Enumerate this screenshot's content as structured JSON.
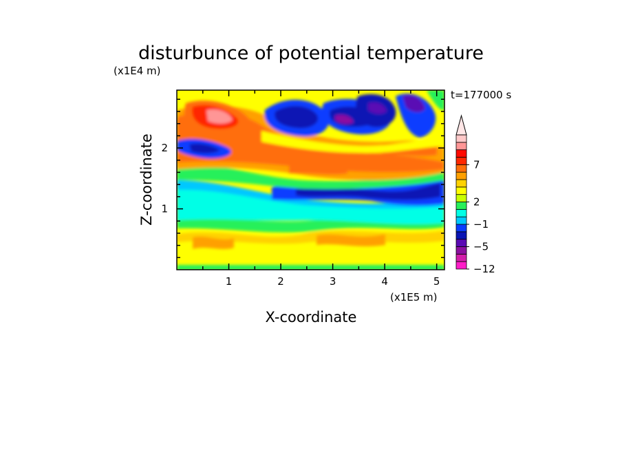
{
  "chart_data": {
    "type": "heatmap",
    "title": "disturbunce of potential temperature",
    "xlabel": "X-coordinate",
    "ylabel": "Z-coordinate",
    "x_unit": "(x1E5 m)",
    "y_unit": "(x1E4 m)",
    "time_label": "t=177000 s",
    "xlim": [
      0,
      5.15
    ],
    "ylim": [
      0,
      2.95
    ],
    "x_ticks": [
      1,
      2,
      3,
      4,
      5
    ],
    "y_ticks": [
      1,
      2
    ],
    "x_tick_labels": [
      "1",
      "2",
      "3",
      "4",
      "5"
    ],
    "y_tick_labels": [
      "1",
      "2"
    ],
    "colorbar": {
      "colors": [
        "#ff1ec8",
        "#d21eaa",
        "#8c10a0",
        "#5a0ab4",
        "#0a14b4",
        "#0a3cff",
        "#00c8ff",
        "#00ffe6",
        "#28f05a",
        "#c8ff00",
        "#ffff00",
        "#ffd200",
        "#ffa000",
        "#ff6e0a",
        "#ff2800",
        "#ff0a00",
        "#ff9696",
        "#ffc8c8"
      ],
      "top_arrow_color": "#ffe6e6",
      "labels": [
        "7",
        "2",
        "−1",
        "−5",
        "−12"
      ]
    },
    "field_note": "Filled contours of potential temperature disturbance: warm (orange/red) layer near z~2.1-2.6, cold (blue/purple) patches near z~2.5-2.8, cyan/blue band around z~1.0-1.4, yellow/orange near the surface."
  }
}
